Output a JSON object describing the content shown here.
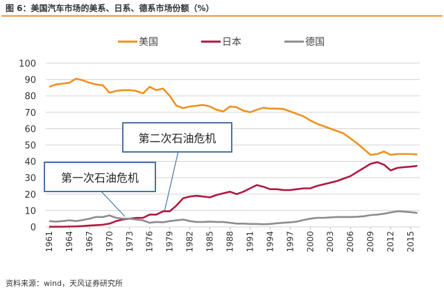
{
  "title": "图 6：美国汽车市场的美系、日系、德系市场份额（%）",
  "source": "资料来源：wind，天风证券研究所",
  "chart_data": {
    "type": "line",
    "title": "",
    "xlabel": "",
    "ylabel": "",
    "ylim": [
      0,
      100
    ],
    "yticks": [
      0,
      10,
      20,
      30,
      40,
      50,
      60,
      70,
      80,
      90,
      100
    ],
    "xticks": [
      1961,
      1964,
      1967,
      1970,
      1973,
      1976,
      1979,
      1982,
      1985,
      1988,
      1991,
      1994,
      1997,
      2000,
      2003,
      2006,
      2009,
      2012,
      2015
    ],
    "x_start": 1961,
    "x_end": 2016,
    "grid": true,
    "legend_position": "top",
    "series": [
      {
        "name": "美国",
        "color": "#f0901e",
        "values": [
          85.5,
          87,
          87.5,
          88,
          90.5,
          89.5,
          88,
          87,
          86.5,
          82,
          83,
          83.5,
          83.5,
          83,
          81.5,
          85.5,
          83.5,
          84.5,
          80,
          74,
          72.5,
          73.5,
          74,
          74.5,
          73.5,
          71.5,
          70.5,
          73.5,
          73,
          71,
          70,
          71.5,
          72.8,
          72.2,
          72.2,
          72,
          70.5,
          69,
          67.5,
          65,
          63,
          61.5,
          60,
          58.5,
          57,
          54,
          51,
          47.5,
          44,
          44.5,
          46,
          44,
          44.5,
          44.5,
          44.5,
          44.2
        ]
      },
      {
        "name": "日本",
        "color": "#b0173f",
        "values": [
          0.1,
          0.1,
          0.1,
          0.2,
          0.3,
          0.5,
          0.8,
          1,
          1.3,
          2,
          3.5,
          4.5,
          5,
          5.5,
          5.5,
          7.5,
          7.5,
          9.5,
          9.5,
          13,
          17.5,
          18.5,
          19,
          18.5,
          18,
          19.5,
          20.5,
          21.5,
          20,
          21.5,
          23.5,
          25.5,
          24.5,
          23,
          23,
          22.5,
          22.5,
          23,
          23.5,
          23.5,
          25,
          26,
          27,
          28,
          29.5,
          31,
          33.5,
          36,
          38.5,
          39.5,
          38,
          34.5,
          36,
          36.5,
          36.8,
          37.3
        ]
      },
      {
        "name": "德国",
        "color": "#8c8c8c",
        "values": [
          3.5,
          3.2,
          3.5,
          4,
          3.5,
          4.2,
          5,
          6,
          6,
          7,
          5.5,
          5,
          5,
          4.5,
          4,
          2.5,
          3,
          2.8,
          3.5,
          4,
          4.5,
          3.5,
          3,
          3,
          3.2,
          3,
          3,
          2.5,
          2,
          2,
          1.8,
          1.8,
          1.6,
          1.8,
          2.2,
          2.5,
          2.8,
          3.2,
          4.2,
          5,
          5.5,
          5.5,
          5.8,
          6,
          6,
          6,
          6.2,
          6.5,
          7.2,
          7.5,
          8,
          8.8,
          9.5,
          9.3,
          9,
          8.5
        ]
      }
    ],
    "annotations": [
      {
        "text": "第二次石油危机",
        "year": 1979
      },
      {
        "text": "第一次石油危机",
        "year": 1973
      }
    ]
  }
}
